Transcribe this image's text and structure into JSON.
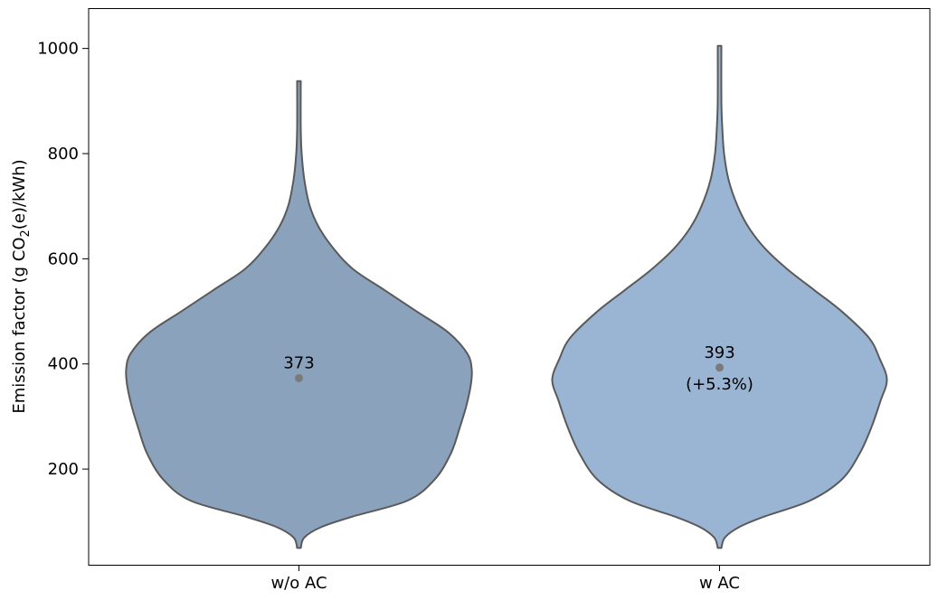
{
  "chart_data": {
    "type": "violin",
    "title": "",
    "xlabel": "",
    "ylabel_parts": {
      "before": "Emission factor (g CO",
      "subscript": "2",
      "after": "(e)/kWh)"
    },
    "ylim": [
      18,
      1075
    ],
    "yticks": [
      200,
      400,
      600,
      800,
      1000
    ],
    "grid": false,
    "legend": "none",
    "categories": [
      "w/o AC",
      "w AC"
    ],
    "series": [
      {
        "category": "w/o AC",
        "color": "#8aa2bc",
        "median": 373,
        "median_label": "373",
        "change_label": "",
        "min": 50,
        "max": 938,
        "profile": [
          [
            50,
            2
          ],
          [
            70,
            6
          ],
          [
            90,
            25
          ],
          [
            110,
            60
          ],
          [
            140,
            120
          ],
          [
            180,
            150
          ],
          [
            230,
            168
          ],
          [
            280,
            178
          ],
          [
            320,
            185
          ],
          [
            360,
            190
          ],
          [
            390,
            191
          ],
          [
            420,
            186
          ],
          [
            460,
            165
          ],
          [
            500,
            130
          ],
          [
            540,
            95
          ],
          [
            580,
            60
          ],
          [
            620,
            38
          ],
          [
            660,
            22
          ],
          [
            700,
            12
          ],
          [
            750,
            6
          ],
          [
            800,
            3
          ],
          [
            850,
            2
          ],
          [
            938,
            2
          ]
        ]
      },
      {
        "category": "w AC",
        "color": "#9ab5d3",
        "median": 393,
        "median_label": "393",
        "change_label": "(+5.3%)",
        "min": 50,
        "max": 1005,
        "profile": [
          [
            50,
            2
          ],
          [
            70,
            6
          ],
          [
            90,
            22
          ],
          [
            110,
            50
          ],
          [
            140,
            100
          ],
          [
            180,
            135
          ],
          [
            230,
            155
          ],
          [
            280,
            168
          ],
          [
            330,
            178
          ],
          [
            370,
            185
          ],
          [
            410,
            177
          ],
          [
            450,
            165
          ],
          [
            500,
            135
          ],
          [
            540,
            105
          ],
          [
            580,
            75
          ],
          [
            620,
            50
          ],
          [
            660,
            32
          ],
          [
            700,
            20
          ],
          [
            750,
            10
          ],
          [
            800,
            5
          ],
          [
            850,
            3
          ],
          [
            900,
            2
          ],
          [
            1005,
            2
          ]
        ]
      }
    ]
  }
}
